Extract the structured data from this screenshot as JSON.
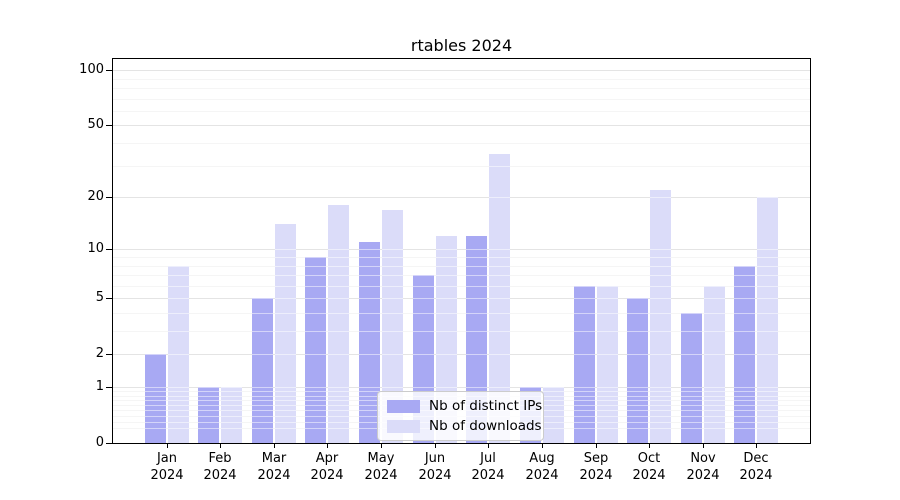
{
  "figure": {
    "background": "#ffffff"
  },
  "chart_data": {
    "type": "bar",
    "title": "rtables 2024",
    "categories": [
      "Jan",
      "Feb",
      "Mar",
      "Apr",
      "May",
      "Jun",
      "Jul",
      "Aug",
      "Sep",
      "Oct",
      "Nov",
      "Dec"
    ],
    "category_year": "2024",
    "series": [
      {
        "name": "Nb of distinct IPs",
        "color": "#a8a9f3",
        "values": [
          2,
          1,
          5,
          9,
          11,
          7,
          12,
          1,
          6,
          5,
          4,
          8
        ]
      },
      {
        "name": "Nb of downloads",
        "color": "#dbdcf9",
        "values": [
          8,
          1,
          14,
          18,
          17,
          12,
          35,
          1,
          6,
          22,
          6,
          20
        ]
      }
    ],
    "xlabel": "",
    "ylabel": "",
    "yscale": "log1p",
    "ylim": [
      0,
      115
    ],
    "yticks": [
      0,
      1,
      2,
      5,
      10,
      20,
      50,
      100
    ],
    "minor_yticks": [
      0.2,
      0.3,
      0.4,
      0.5,
      0.6,
      0.7,
      0.8,
      0.9,
      3,
      4,
      6,
      7,
      8,
      9,
      30,
      40,
      60,
      70,
      80,
      90
    ],
    "grid": "horizontal-on",
    "legend": {
      "position": "lower center",
      "entries": [
        "Nb of distinct IPs",
        "Nb of downloads"
      ]
    }
  },
  "colors": {
    "major_grid": "#c9c9c9",
    "minor_grid": "#eaeaea",
    "grid_overlay_on_bars": "rgba(255,255,255,0.5)",
    "spine": "#000000",
    "text": "#000000"
  }
}
